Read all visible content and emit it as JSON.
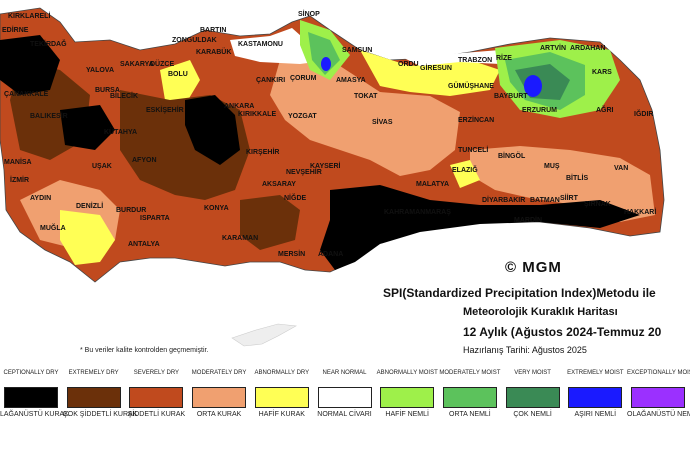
{
  "mgm_label": "© MGM",
  "title": {
    "line1": "SPI(Standardized Precipitation Index)Metodu ile",
    "line2": "Meteorolojik Kuraklık Haritası",
    "line3": "12 Aylık (Ağustos 2024-Temmuz 20",
    "line4": "Hazırlanış Tarihi: Ağustos 2025"
  },
  "note": "* Bu veriler kalite kontrolden geçmemiştir.",
  "legend": [
    {
      "top": "CEPTIONALLY DRY",
      "bottom": "LAĞANÜSTÜ KURAK",
      "color": "#000000"
    },
    {
      "top": "EXTREMELY DRY",
      "bottom": "ÇOK ŞİDDETLİ KURAK",
      "color": "#6b300a"
    },
    {
      "top": "SEVERELY DRY",
      "bottom": "ŞİDDETLİ KURAK",
      "color": "#c04a1e"
    },
    {
      "top": "MODERATELY DRY",
      "bottom": "ORTA KURAK",
      "color": "#f0a070"
    },
    {
      "top": "ABNORMALLY DRY",
      "bottom": "HAFİF KURAK",
      "color": "#ffff55"
    },
    {
      "top": "NEAR NORMAL",
      "bottom": "NORMAL CİVARI",
      "color": "#ffffff"
    },
    {
      "top": "ABNORMALLY MOIST",
      "bottom": "HAFİF NEMLİ",
      "color": "#9ef04a"
    },
    {
      "top": "MODERATELY MOIST",
      "bottom": "ORTA NEMLİ",
      "color": "#5cc25c"
    },
    {
      "top": "VERY MOIST",
      "bottom": "ÇOK NEMLİ",
      "color": "#3a8a55"
    },
    {
      "top": "EXTREMELY MOIST",
      "bottom": "AŞIRI NEMLİ",
      "color": "#1a1aff"
    },
    {
      "top": "EXCEPTIONALLY MOIST",
      "bottom": "OLAĞANÜSTÜ NEMLİ",
      "color": "#9b30ff"
    }
  ],
  "cities": [
    "KIRKLARELİ",
    "EDİRNE",
    "TEKİRDAĞ",
    "ÇANAKKALE",
    "BALIKESİR",
    "BURSA",
    "YALOVA",
    "SAKARYA",
    "DÜZCE",
    "BOLU",
    "ZONGULDAK",
    "BARTIN",
    "KARABÜK",
    "KASTAMONU",
    "SİNOP",
    "SAMSUN",
    "AMASYA",
    "ÇANKIRI",
    "ÇORUM",
    "TOKAT",
    "ORDU",
    "GİRESUN",
    "TRABZON",
    "RİZE",
    "ARTVİN",
    "ARDAHAN",
    "KARS",
    "IĞDIR",
    "AĞRI",
    "ERZURUM",
    "BAYBURT",
    "GÜMÜŞHANE",
    "ERZİNCAN",
    "TUNCELİ",
    "BİNGÖL",
    "MUŞ",
    "BİTLİS",
    "VAN",
    "HAKKARİ",
    "SİİRT",
    "ŞIRNAK",
    "BATMAN",
    "DİYARBAKIR",
    "MARDİN",
    "ELAZIĞ",
    "MALATYA",
    "SİVAS",
    "YOZGAT",
    "KIRIKKALE",
    "ANKARA",
    "ESKİŞEHİR",
    "BİLECİK",
    "KÜTAHYA",
    "MANİSA",
    "İZMİR",
    "AYDIN",
    "DENİZLİ",
    "MUĞLA",
    "UŞAK",
    "AFYON",
    "BURDUR",
    "ISPARTA",
    "ANTALYA",
    "KONYA",
    "KARAMAN",
    "MERSİN",
    "ADANA",
    "NİĞDE",
    "AKSARAY",
    "NEVŞEHİR",
    "KIRŞEHİR",
    "KAYSERİ",
    "KAHRAMANMARAŞ"
  ]
}
